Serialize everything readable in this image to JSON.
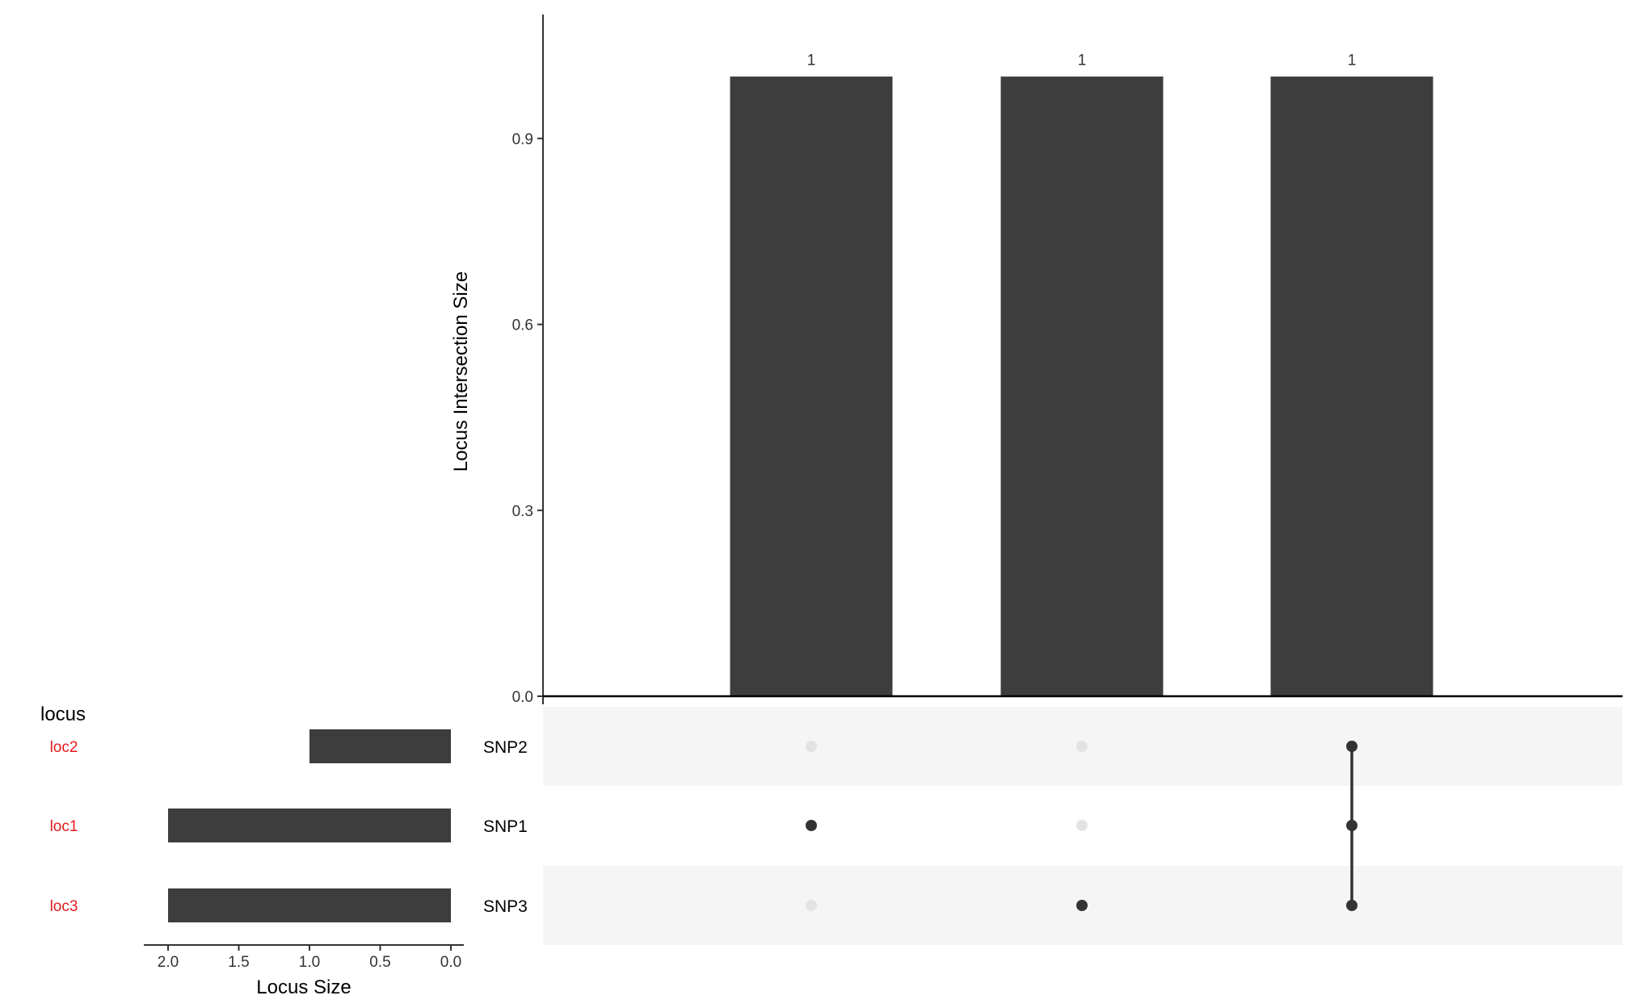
{
  "chart_data": {
    "type": "upset",
    "intersections": {
      "ylabel": "Locus Intersection Size",
      "ylim": [
        0,
        1.1
      ],
      "yticks": [
        "0.0",
        "0.3",
        "0.6",
        "0.9"
      ],
      "ytick_values": [
        0,
        0.3,
        0.6,
        0.9
      ],
      "values": [
        1,
        1,
        1
      ],
      "value_labels": [
        "1",
        "1",
        "1"
      ],
      "members": [
        [
          "SNP1"
        ],
        [
          "SNP3"
        ],
        [
          "SNP2",
          "SNP1",
          "SNP3"
        ]
      ]
    },
    "sets": {
      "names": [
        "SNP2",
        "SNP1",
        "SNP3"
      ],
      "sizes": [
        1,
        2,
        2
      ],
      "xlabel": "Locus Size",
      "xlim": [
        2.08,
        0
      ],
      "xticks": [
        "2.0",
        "1.5",
        "1.0",
        "0.5",
        "0.0"
      ],
      "xtick_values": [
        2.0,
        1.5,
        1.0,
        0.5,
        0.0
      ]
    },
    "locus": {
      "title": "locus",
      "labels": [
        "loc2",
        "loc1",
        "loc3"
      ],
      "color": "#e31a1c"
    },
    "colors": {
      "bar": "#3d3d3d",
      "dot_active": "#333333",
      "dot_inactive": "#e3e3e3",
      "stripe": "#f5f5f5"
    }
  }
}
